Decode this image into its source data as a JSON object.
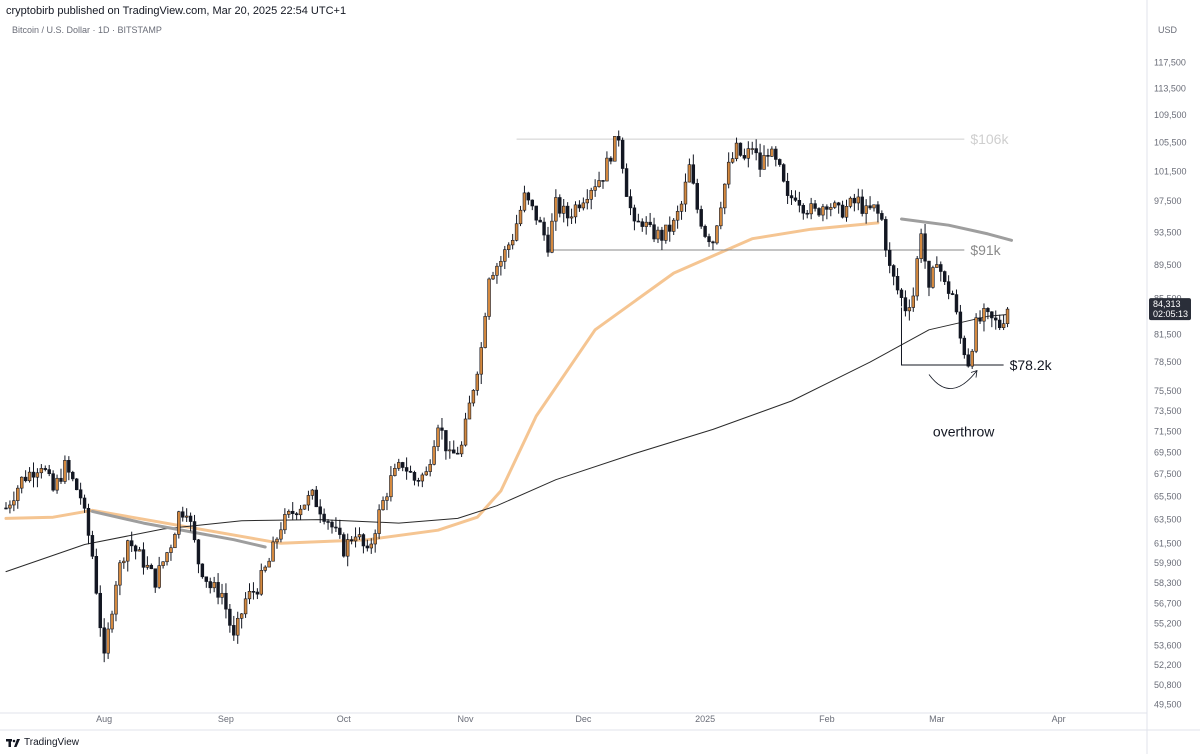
{
  "header": {
    "published_line": "cryptobirb published on TradingView.com, Mar 20, 2025 22:54 UTC+1",
    "symbol_line": "Bitcoin / U.S. Dollar · 1D · BITSTAMP"
  },
  "currency_label": "USD",
  "price_tag": {
    "price": "84,313",
    "countdown": "02:05:13",
    "color": "#2a2e39"
  },
  "footer": {
    "brand": "TradingView"
  },
  "colors": {
    "up": "#d4893f",
    "down": "#131722",
    "ema_orange": "#f5c592",
    "ma_black": "#2a2a2a",
    "ma_gray": "#9e9e9e"
  },
  "chart_data": {
    "type": "candlestick",
    "title": "Bitcoin / U.S. Dollar · 1D · BITSTAMP",
    "y_ticks": [
      49500,
      50800,
      52200,
      53600,
      55200,
      56700,
      58300,
      59900,
      61500,
      63500,
      65500,
      67500,
      69500,
      71500,
      73500,
      75500,
      78500,
      81500,
      85500,
      89500,
      93500,
      97500,
      101500,
      105500,
      109500,
      113500,
      117500
    ],
    "y_tick_labels": [
      "49,500",
      "50,800",
      "52,200",
      "53,600",
      "55,200",
      "56,700",
      "58,300",
      "59,900",
      "61,500",
      "63,500",
      "65,500",
      "67,500",
      "69,500",
      "71,500",
      "73,500",
      "75,500",
      "78,500",
      "81,500",
      "85,500",
      "89,500",
      "93,500",
      "97,500",
      "101,500",
      "105,500",
      "109,500",
      "113,500",
      "117,500"
    ],
    "x_labels": [
      {
        "label": "Aug",
        "day": 25
      },
      {
        "label": "Sep",
        "day": 56
      },
      {
        "label": "Oct",
        "day": 86
      },
      {
        "label": "Nov",
        "day": 117
      },
      {
        "label": "Dec",
        "day": 147
      },
      {
        "label": "2025",
        "day": 178
      },
      {
        "label": "Feb",
        "day": 209
      },
      {
        "label": "Mar",
        "day": 237
      },
      {
        "label": "Apr",
        "day": 268
      }
    ],
    "x_range": [
      0,
      290
    ],
    "price_range": [
      49000,
      120500
    ],
    "last_price": 84313,
    "keypoints": [
      {
        "d": 0,
        "p": 64500
      },
      {
        "d": 4,
        "p": 67000
      },
      {
        "d": 9,
        "p": 68500
      },
      {
        "d": 12,
        "p": 66000
      },
      {
        "d": 15,
        "p": 68200
      },
      {
        "d": 19,
        "p": 65500
      },
      {
        "d": 22,
        "p": 60500
      },
      {
        "d": 25,
        "p": 52500
      },
      {
        "d": 28,
        "p": 58500
      },
      {
        "d": 31,
        "p": 61800
      },
      {
        "d": 35,
        "p": 60000
      },
      {
        "d": 38,
        "p": 58500
      },
      {
        "d": 42,
        "p": 61500
      },
      {
        "d": 44,
        "p": 64000
      },
      {
        "d": 46,
        "p": 64500
      },
      {
        "d": 49,
        "p": 60000
      },
      {
        "d": 52,
        "p": 58000
      },
      {
        "d": 55,
        "p": 57500
      },
      {
        "d": 58,
        "p": 54000
      },
      {
        "d": 61,
        "p": 57000
      },
      {
        "d": 64,
        "p": 58000
      },
      {
        "d": 67,
        "p": 60000
      },
      {
        "d": 70,
        "p": 63000
      },
      {
        "d": 74,
        "p": 64500
      },
      {
        "d": 78,
        "p": 65500
      },
      {
        "d": 82,
        "p": 63500
      },
      {
        "d": 86,
        "p": 61000
      },
      {
        "d": 89,
        "p": 62500
      },
      {
        "d": 92,
        "p": 60500
      },
      {
        "d": 95,
        "p": 64000
      },
      {
        "d": 98,
        "p": 67000
      },
      {
        "d": 101,
        "p": 68500
      },
      {
        "d": 104,
        "p": 67000
      },
      {
        "d": 107,
        "p": 67500
      },
      {
        "d": 110,
        "p": 72500
      },
      {
        "d": 113,
        "p": 69000
      },
      {
        "d": 116,
        "p": 70000
      },
      {
        "d": 119,
        "p": 76000
      },
      {
        "d": 121,
        "p": 80000
      },
      {
        "d": 123,
        "p": 88500
      },
      {
        "d": 126,
        "p": 90000
      },
      {
        "d": 129,
        "p": 93000
      },
      {
        "d": 132,
        "p": 98000
      },
      {
        "d": 135,
        "p": 95500
      },
      {
        "d": 138,
        "p": 92000
      },
      {
        "d": 140,
        "p": 97000
      },
      {
        "d": 143,
        "p": 95500
      },
      {
        "d": 146,
        "p": 97500
      },
      {
        "d": 149,
        "p": 99500
      },
      {
        "d": 152,
        "p": 101000
      },
      {
        "d": 154,
        "p": 104000
      },
      {
        "d": 156,
        "p": 106500
      },
      {
        "d": 158,
        "p": 99000
      },
      {
        "d": 160,
        "p": 94000
      },
      {
        "d": 162,
        "p": 95000
      },
      {
        "d": 164,
        "p": 93500
      },
      {
        "d": 167,
        "p": 93000
      },
      {
        "d": 170,
        "p": 94500
      },
      {
        "d": 172,
        "p": 97000
      },
      {
        "d": 174,
        "p": 102000
      },
      {
        "d": 176,
        "p": 96500
      },
      {
        "d": 178,
        "p": 93500
      },
      {
        "d": 180,
        "p": 92500
      },
      {
        "d": 182,
        "p": 97500
      },
      {
        "d": 184,
        "p": 102000
      },
      {
        "d": 186,
        "p": 104500
      },
      {
        "d": 188,
        "p": 103000
      },
      {
        "d": 190,
        "p": 105000
      },
      {
        "d": 192,
        "p": 102000
      },
      {
        "d": 194,
        "p": 104500
      },
      {
        "d": 197,
        "p": 101500
      },
      {
        "d": 199,
        "p": 97500
      },
      {
        "d": 201,
        "p": 98500
      },
      {
        "d": 203,
        "p": 97000
      },
      {
        "d": 206,
        "p": 96000
      },
      {
        "d": 209,
        "p": 97500
      },
      {
        "d": 212,
        "p": 96000
      },
      {
        "d": 215,
        "p": 97000
      },
      {
        "d": 217,
        "p": 97500
      },
      {
        "d": 219,
        "p": 96000
      },
      {
        "d": 221,
        "p": 96500
      },
      {
        "d": 223,
        "p": 95000
      },
      {
        "d": 225,
        "p": 89000
      },
      {
        "d": 227,
        "p": 86500
      },
      {
        "d": 229,
        "p": 84500
      },
      {
        "d": 231,
        "p": 86000
      },
      {
        "d": 233,
        "p": 94000
      },
      {
        "d": 235,
        "p": 86000
      },
      {
        "d": 237,
        "p": 90500
      },
      {
        "d": 239,
        "p": 87000
      },
      {
        "d": 241,
        "p": 86000
      },
      {
        "d": 243,
        "p": 81000
      },
      {
        "d": 245,
        "p": 78500
      },
      {
        "d": 247,
        "p": 82500
      },
      {
        "d": 249,
        "p": 83500
      },
      {
        "d": 251,
        "p": 83000
      },
      {
        "d": 253,
        "p": 82500
      },
      {
        "d": 255,
        "p": 84313
      }
    ],
    "moving_averages": [
      {
        "name": "ma_orange",
        "color": "#f5c592",
        "points": [
          [
            0,
            63600
          ],
          [
            12,
            63700
          ],
          [
            22,
            64300
          ],
          [
            70,
            61500
          ],
          [
            92,
            61800
          ],
          [
            110,
            62600
          ],
          [
            120,
            63700
          ],
          [
            126,
            66000
          ],
          [
            135,
            73000
          ],
          [
            150,
            82000
          ],
          [
            170,
            88500
          ],
          [
            190,
            92700
          ],
          [
            205,
            93900
          ],
          [
            222,
            94700
          ]
        ]
      },
      {
        "name": "ma_black",
        "color": "#2a2a2a",
        "points": [
          [
            0,
            59200
          ],
          [
            20,
            61400
          ],
          [
            40,
            62700
          ],
          [
            60,
            63400
          ],
          [
            80,
            63500
          ],
          [
            100,
            63200
          ],
          [
            115,
            63600
          ],
          [
            125,
            64700
          ],
          [
            140,
            67000
          ],
          [
            160,
            69400
          ],
          [
            180,
            71700
          ],
          [
            200,
            74500
          ],
          [
            220,
            78500
          ],
          [
            235,
            82000
          ],
          [
            250,
            83500
          ],
          [
            255,
            83700
          ]
        ]
      },
      {
        "name": "ma_gray_left",
        "color": "#9e9e9e",
        "points": [
          [
            22,
            64200
          ],
          [
            35,
            63200
          ],
          [
            48,
            62400
          ],
          [
            58,
            61800
          ],
          [
            66,
            61200
          ]
        ]
      },
      {
        "name": "ma_gray_right",
        "color": "#9e9e9e",
        "points": [
          [
            228,
            95200
          ],
          [
            240,
            94400
          ],
          [
            250,
            93300
          ],
          [
            256,
            92500
          ]
        ]
      }
    ],
    "levels": [
      {
        "label": "$106k",
        "value": 106000,
        "from_day": 130,
        "to_day": 244,
        "color": "#cfcfcf"
      },
      {
        "label": "$91k",
        "value": 91300,
        "from_day": 138,
        "to_day": 244,
        "color": "#8a8a8a"
      },
      {
        "label": "$78.2k",
        "value": 78200,
        "from_day": 228,
        "to_day": 254,
        "color": "#131722"
      }
    ],
    "annotations": [
      {
        "text": "overthrow",
        "day": 236,
        "value": 71500
      }
    ]
  }
}
